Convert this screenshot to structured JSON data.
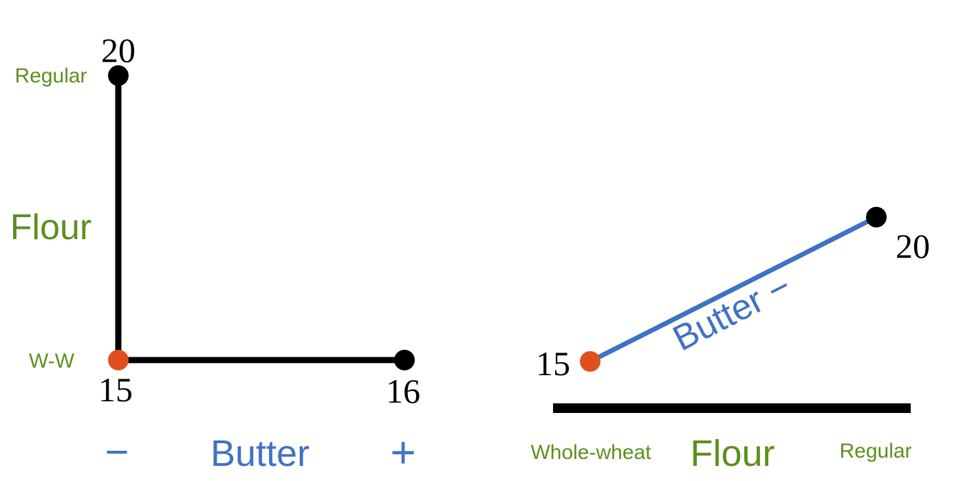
{
  "colors": {
    "line": "#000000",
    "flour_text": "#5e8f1e",
    "butter_text": "#3f72c4",
    "butter_line": "#3f72c4",
    "highlight_point": "#e0501e",
    "point": "#000000"
  },
  "left_panel": {
    "vertical_axis": {
      "label": "Flour",
      "top_level": "Regular",
      "bottom_level": "W-W"
    },
    "horizontal_axis": {
      "label": "Butter",
      "low_level": "−",
      "high_level": "+"
    },
    "points": {
      "origin_value": "15",
      "top_value": "20",
      "right_value": "16"
    }
  },
  "right_panel": {
    "axis": {
      "label": "Flour",
      "left_level": "Whole-wheat",
      "right_level": "Regular"
    },
    "line_label": "Butter −",
    "points": {
      "start_value": "15",
      "end_value": "20"
    }
  }
}
